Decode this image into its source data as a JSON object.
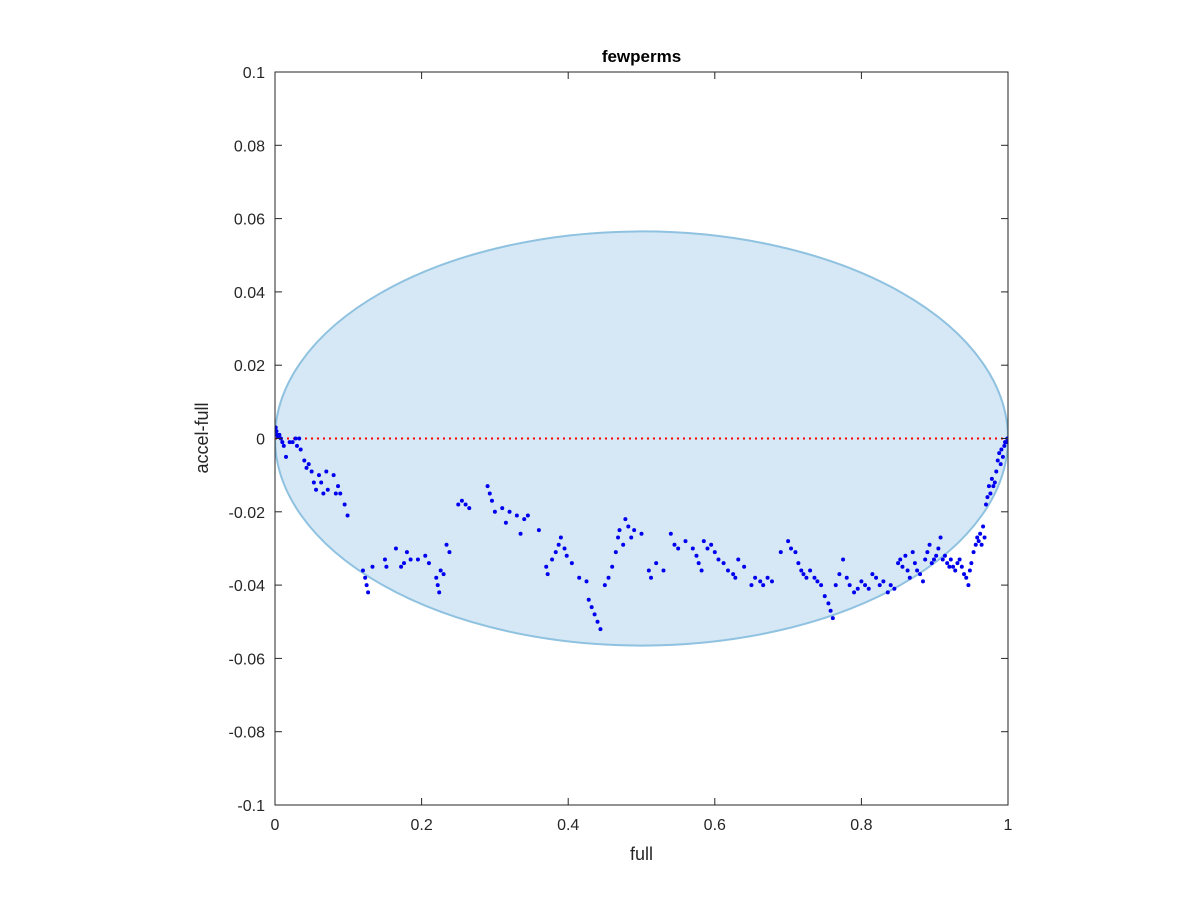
{
  "chart_data": {
    "type": "scatter",
    "title": "fewperms",
    "xlabel": "full",
    "ylabel": "accel-full",
    "xlim": [
      0,
      1
    ],
    "ylim": [
      -0.1,
      0.1
    ],
    "x_ticks": [
      "0",
      "0.2",
      "0.4",
      "0.6",
      "0.8",
      "1"
    ],
    "y_ticks": [
      "0.1",
      "0.08",
      "0.06",
      "0.04",
      "0.02",
      "0",
      "-0.02",
      "-0.04",
      "-0.06",
      "-0.08",
      "-0.1"
    ],
    "x_tick_values": [
      0,
      0.2,
      0.4,
      0.6,
      0.8,
      1
    ],
    "y_tick_values": [
      0.1,
      0.08,
      0.06,
      0.04,
      0.02,
      0,
      -0.02,
      -0.04,
      -0.06,
      -0.08,
      -0.1
    ],
    "grid": false,
    "colors": {
      "points": "#0000ee",
      "ellipse_fill": "#d6e8f5",
      "ellipse_stroke": "#8fc2e0",
      "zero_line": "#ff0000",
      "axes": "#262626"
    },
    "ellipse": {
      "center": [
        0.5,
        0.0
      ],
      "x_radius": 0.5,
      "y_radius": 0.0565
    },
    "zero_reference_line": {
      "y": 0,
      "x_range": [
        0,
        1
      ],
      "style": "dotted"
    },
    "points": [
      [
        0.001,
        0.003
      ],
      [
        0.002,
        0.002
      ],
      [
        0.003,
        0.001
      ],
      [
        0.004,
        0.0005
      ],
      [
        0.006,
        0.001
      ],
      [
        0.008,
        0.0
      ],
      [
        0.01,
        -0.001
      ],
      [
        0.012,
        -0.002
      ],
      [
        0.015,
        -0.005
      ],
      [
        0.02,
        -0.001
      ],
      [
        0.024,
        -0.001
      ],
      [
        0.028,
        0.0
      ],
      [
        0.03,
        -0.002
      ],
      [
        0.033,
        0.0
      ],
      [
        0.035,
        -0.003
      ],
      [
        0.04,
        -0.006
      ],
      [
        0.043,
        -0.008
      ],
      [
        0.046,
        -0.007
      ],
      [
        0.05,
        -0.009
      ],
      [
        0.053,
        -0.012
      ],
      [
        0.056,
        -0.014
      ],
      [
        0.06,
        -0.01
      ],
      [
        0.063,
        -0.012
      ],
      [
        0.066,
        -0.015
      ],
      [
        0.07,
        -0.009
      ],
      [
        0.072,
        -0.014
      ],
      [
        0.08,
        -0.01
      ],
      [
        0.083,
        -0.015
      ],
      [
        0.086,
        -0.013
      ],
      [
        0.089,
        -0.015
      ],
      [
        0.095,
        -0.018
      ],
      [
        0.099,
        -0.021
      ],
      [
        0.12,
        -0.036
      ],
      [
        0.123,
        -0.038
      ],
      [
        0.125,
        -0.04
      ],
      [
        0.127,
        -0.042
      ],
      [
        0.133,
        -0.035
      ],
      [
        0.15,
        -0.033
      ],
      [
        0.152,
        -0.035
      ],
      [
        0.165,
        -0.03
      ],
      [
        0.172,
        -0.035
      ],
      [
        0.176,
        -0.034
      ],
      [
        0.18,
        -0.031
      ],
      [
        0.185,
        -0.033
      ],
      [
        0.195,
        -0.033
      ],
      [
        0.205,
        -0.032
      ],
      [
        0.21,
        -0.034
      ],
      [
        0.22,
        -0.038
      ],
      [
        0.222,
        -0.04
      ],
      [
        0.224,
        -0.042
      ],
      [
        0.226,
        -0.036
      ],
      [
        0.23,
        -0.037
      ],
      [
        0.234,
        -0.029
      ],
      [
        0.238,
        -0.031
      ],
      [
        0.25,
        -0.018
      ],
      [
        0.255,
        -0.017
      ],
      [
        0.26,
        -0.018
      ],
      [
        0.265,
        -0.019
      ],
      [
        0.29,
        -0.013
      ],
      [
        0.293,
        -0.015
      ],
      [
        0.296,
        -0.017
      ],
      [
        0.3,
        -0.02
      ],
      [
        0.31,
        -0.019
      ],
      [
        0.315,
        -0.023
      ],
      [
        0.32,
        -0.02
      ],
      [
        0.33,
        -0.021
      ],
      [
        0.335,
        -0.026
      ],
      [
        0.34,
        -0.022
      ],
      [
        0.345,
        -0.021
      ],
      [
        0.36,
        -0.025
      ],
      [
        0.37,
        -0.035
      ],
      [
        0.372,
        -0.037
      ],
      [
        0.378,
        -0.033
      ],
      [
        0.383,
        -0.031
      ],
      [
        0.387,
        -0.029
      ],
      [
        0.39,
        -0.027
      ],
      [
        0.395,
        -0.03
      ],
      [
        0.398,
        -0.032
      ],
      [
        0.405,
        -0.034
      ],
      [
        0.415,
        -0.038
      ],
      [
        0.425,
        -0.039
      ],
      [
        0.428,
        -0.044
      ],
      [
        0.432,
        -0.046
      ],
      [
        0.436,
        -0.048
      ],
      [
        0.44,
        -0.05
      ],
      [
        0.444,
        -0.052
      ],
      [
        0.45,
        -0.04
      ],
      [
        0.455,
        -0.038
      ],
      [
        0.46,
        -0.035
      ],
      [
        0.465,
        -0.031
      ],
      [
        0.468,
        -0.027
      ],
      [
        0.47,
        -0.025
      ],
      [
        0.475,
        -0.029
      ],
      [
        0.478,
        -0.022
      ],
      [
        0.482,
        -0.024
      ],
      [
        0.486,
        -0.027
      ],
      [
        0.49,
        -0.025
      ],
      [
        0.5,
        -0.026
      ],
      [
        0.51,
        -0.036
      ],
      [
        0.513,
        -0.038
      ],
      [
        0.52,
        -0.034
      ],
      [
        0.53,
        -0.036
      ],
      [
        0.54,
        -0.026
      ],
      [
        0.545,
        -0.029
      ],
      [
        0.55,
        -0.03
      ],
      [
        0.56,
        -0.028
      ],
      [
        0.57,
        -0.03
      ],
      [
        0.575,
        -0.032
      ],
      [
        0.578,
        -0.034
      ],
      [
        0.582,
        -0.036
      ],
      [
        0.585,
        -0.028
      ],
      [
        0.59,
        -0.03
      ],
      [
        0.595,
        -0.029
      ],
      [
        0.6,
        -0.031
      ],
      [
        0.605,
        -0.033
      ],
      [
        0.612,
        -0.034
      ],
      [
        0.618,
        -0.036
      ],
      [
        0.625,
        -0.037
      ],
      [
        0.628,
        -0.038
      ],
      [
        0.632,
        -0.033
      ],
      [
        0.64,
        -0.035
      ],
      [
        0.65,
        -0.04
      ],
      [
        0.655,
        -0.038
      ],
      [
        0.662,
        -0.039
      ],
      [
        0.666,
        -0.04
      ],
      [
        0.672,
        -0.038
      ],
      [
        0.678,
        -0.039
      ],
      [
        0.69,
        -0.031
      ],
      [
        0.7,
        -0.028
      ],
      [
        0.704,
        -0.03
      ],
      [
        0.71,
        -0.031
      ],
      [
        0.714,
        -0.034
      ],
      [
        0.718,
        -0.036
      ],
      [
        0.721,
        -0.037
      ],
      [
        0.725,
        -0.038
      ],
      [
        0.73,
        -0.036
      ],
      [
        0.736,
        -0.038
      ],
      [
        0.74,
        -0.039
      ],
      [
        0.745,
        -0.04
      ],
      [
        0.75,
        -0.043
      ],
      [
        0.755,
        -0.045
      ],
      [
        0.758,
        -0.047
      ],
      [
        0.761,
        -0.049
      ],
      [
        0.765,
        -0.04
      ],
      [
        0.77,
        -0.037
      ],
      [
        0.775,
        -0.033
      ],
      [
        0.78,
        -0.038
      ],
      [
        0.784,
        -0.04
      ],
      [
        0.79,
        -0.042
      ],
      [
        0.795,
        -0.041
      ],
      [
        0.8,
        -0.039
      ],
      [
        0.805,
        -0.04
      ],
      [
        0.81,
        -0.041
      ],
      [
        0.815,
        -0.037
      ],
      [
        0.82,
        -0.038
      ],
      [
        0.825,
        -0.04
      ],
      [
        0.83,
        -0.039
      ],
      [
        0.836,
        -0.042
      ],
      [
        0.84,
        -0.04
      ],
      [
        0.845,
        -0.041
      ],
      [
        0.85,
        -0.034
      ],
      [
        0.853,
        -0.033
      ],
      [
        0.856,
        -0.035
      ],
      [
        0.86,
        -0.032
      ],
      [
        0.863,
        -0.036
      ],
      [
        0.866,
        -0.038
      ],
      [
        0.87,
        -0.031
      ],
      [
        0.873,
        -0.034
      ],
      [
        0.876,
        -0.036
      ],
      [
        0.88,
        -0.037
      ],
      [
        0.884,
        -0.039
      ],
      [
        0.887,
        -0.033
      ],
      [
        0.89,
        -0.031
      ],
      [
        0.893,
        -0.029
      ],
      [
        0.896,
        -0.034
      ],
      [
        0.899,
        -0.033
      ],
      [
        0.902,
        -0.032
      ],
      [
        0.905,
        -0.03
      ],
      [
        0.908,
        -0.027
      ],
      [
        0.911,
        -0.033
      ],
      [
        0.914,
        -0.032
      ],
      [
        0.917,
        -0.034
      ],
      [
        0.92,
        -0.035
      ],
      [
        0.922,
        -0.033
      ],
      [
        0.925,
        -0.035
      ],
      [
        0.928,
        -0.036
      ],
      [
        0.931,
        -0.034
      ],
      [
        0.934,
        -0.033
      ],
      [
        0.937,
        -0.035
      ],
      [
        0.94,
        -0.037
      ],
      [
        0.943,
        -0.038
      ],
      [
        0.946,
        -0.04
      ],
      [
        0.948,
        -0.036
      ],
      [
        0.95,
        -0.034
      ],
      [
        0.953,
        -0.031
      ],
      [
        0.956,
        -0.029
      ],
      [
        0.958,
        -0.027
      ],
      [
        0.96,
        -0.028
      ],
      [
        0.962,
        -0.026
      ],
      [
        0.964,
        -0.029
      ],
      [
        0.966,
        -0.024
      ],
      [
        0.968,
        -0.027
      ],
      [
        0.97,
        -0.018
      ],
      [
        0.972,
        -0.016
      ],
      [
        0.974,
        -0.013
      ],
      [
        0.976,
        -0.015
      ],
      [
        0.978,
        -0.011
      ],
      [
        0.98,
        -0.013
      ],
      [
        0.982,
        -0.012
      ],
      [
        0.984,
        -0.009
      ],
      [
        0.986,
        -0.006
      ],
      [
        0.988,
        -0.004
      ],
      [
        0.99,
        -0.007
      ],
      [
        0.991,
        -0.003
      ],
      [
        0.993,
        -0.005
      ],
      [
        0.995,
        -0.002
      ],
      [
        0.996,
        -0.001
      ],
      [
        0.998,
        -0.001
      ],
      [
        0.999,
        0.0
      ]
    ]
  }
}
